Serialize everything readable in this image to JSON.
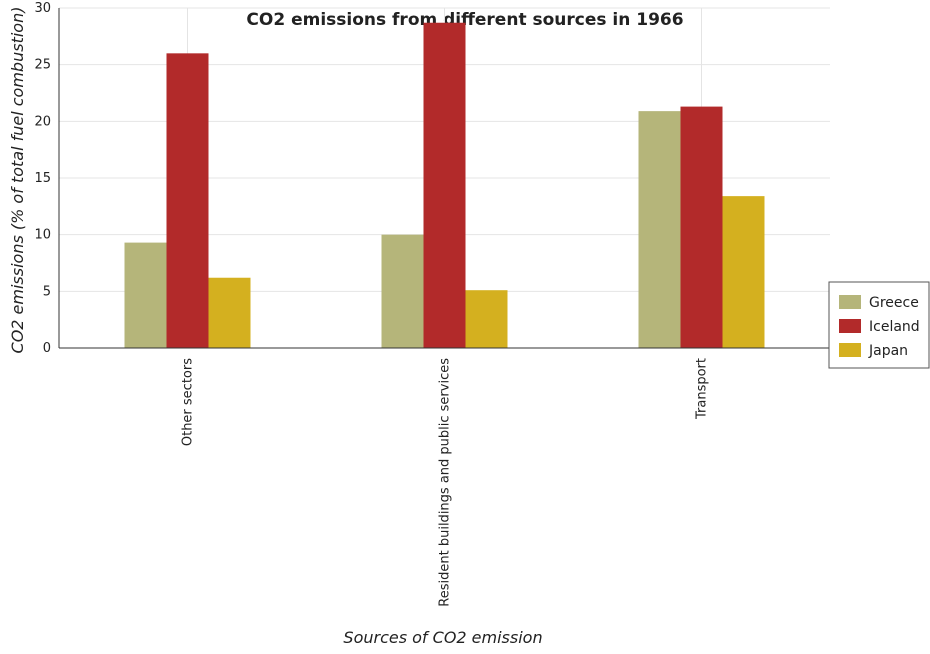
{
  "chart_data": {
    "type": "bar",
    "title": "CO2 emissions from different sources in 1966",
    "xlabel": "Sources of CO2 emission",
    "ylabel": "CO2 emissions (% of total fuel combustion)",
    "categories": [
      "Other sectors",
      "Resident buildings and public services",
      "Transport"
    ],
    "series": [
      {
        "name": "Greece",
        "color": "#b5b57a",
        "values": [
          9.3,
          10.0,
          20.9
        ]
      },
      {
        "name": "Iceland",
        "color": "#b22a2a",
        "values": [
          26.0,
          28.7,
          21.3
        ]
      },
      {
        "name": "Japan",
        "color": "#d4b01f",
        "values": [
          6.2,
          5.1,
          13.4
        ]
      }
    ],
    "ylim": [
      0,
      30
    ],
    "yticks": [
      0,
      5,
      10,
      15,
      20,
      25,
      30
    ],
    "grid": true,
    "legend_position": "right"
  }
}
